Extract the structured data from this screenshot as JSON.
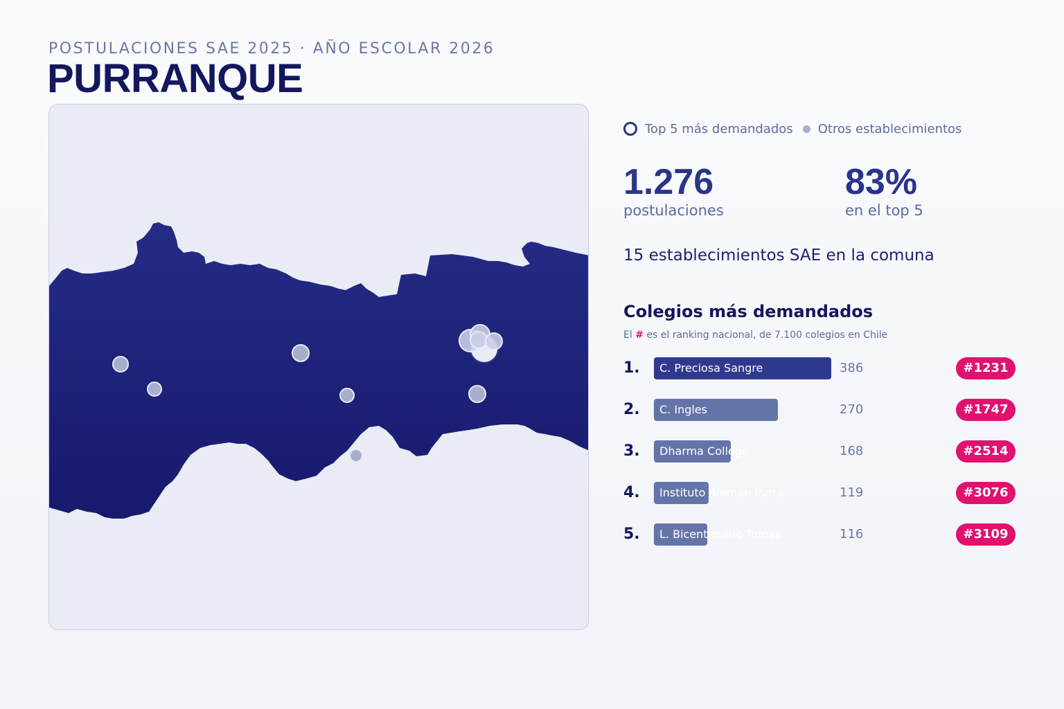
{
  "header": {
    "kicker": "POSTULACIONES SAE 2025 · AÑO ESCOLAR 2026",
    "title": "PURRANQUE"
  },
  "legend": {
    "top_label": "Top 5 más demandados",
    "other_label": "Otros establecimientos"
  },
  "stats": {
    "applications_value": "1.276",
    "applications_label": "postulaciones",
    "top_share_value": "83%",
    "top_share_label": "en el top 5"
  },
  "summary": "15 establecimientos SAE en la comuna",
  "ranking": {
    "title": "Colegios más demandados",
    "note_prefix": "El",
    "note_hash": "#",
    "note_suffix": "es el ranking nacional, de 7.100 colegios en Chile",
    "max_value": 386,
    "items": [
      {
        "pos": "1.",
        "name": "C. Preciosa Sangre",
        "value": 386,
        "value_label": "386",
        "rank": "#1231"
      },
      {
        "pos": "2.",
        "name": "C. Ingles",
        "value": 270,
        "value_label": "270",
        "rank": "#1747"
      },
      {
        "pos": "3.",
        "name": "Dharma College",
        "value": 168,
        "value_label": "168",
        "rank": "#2514"
      },
      {
        "pos": "4.",
        "name": "Instituto Aleman Purra",
        "value": 119,
        "value_label": "119",
        "rank": "#3076"
      },
      {
        "pos": "5.",
        "name": "L. Bicentenario Tomas",
        "value": 116,
        "value_label": "116",
        "rank": "#3109"
      }
    ]
  },
  "colors": {
    "comuna_fill": "#1f2580",
    "panel_bg": "#e9ecf5",
    "marker_fill": "#a8aecb",
    "marker_stroke": "#e8ebf6",
    "top_marker_fill": "#c8cde6",
    "badge": "#e0116f",
    "bar_first": "#2f3a8e",
    "bar_other": "#6574a8"
  }
}
